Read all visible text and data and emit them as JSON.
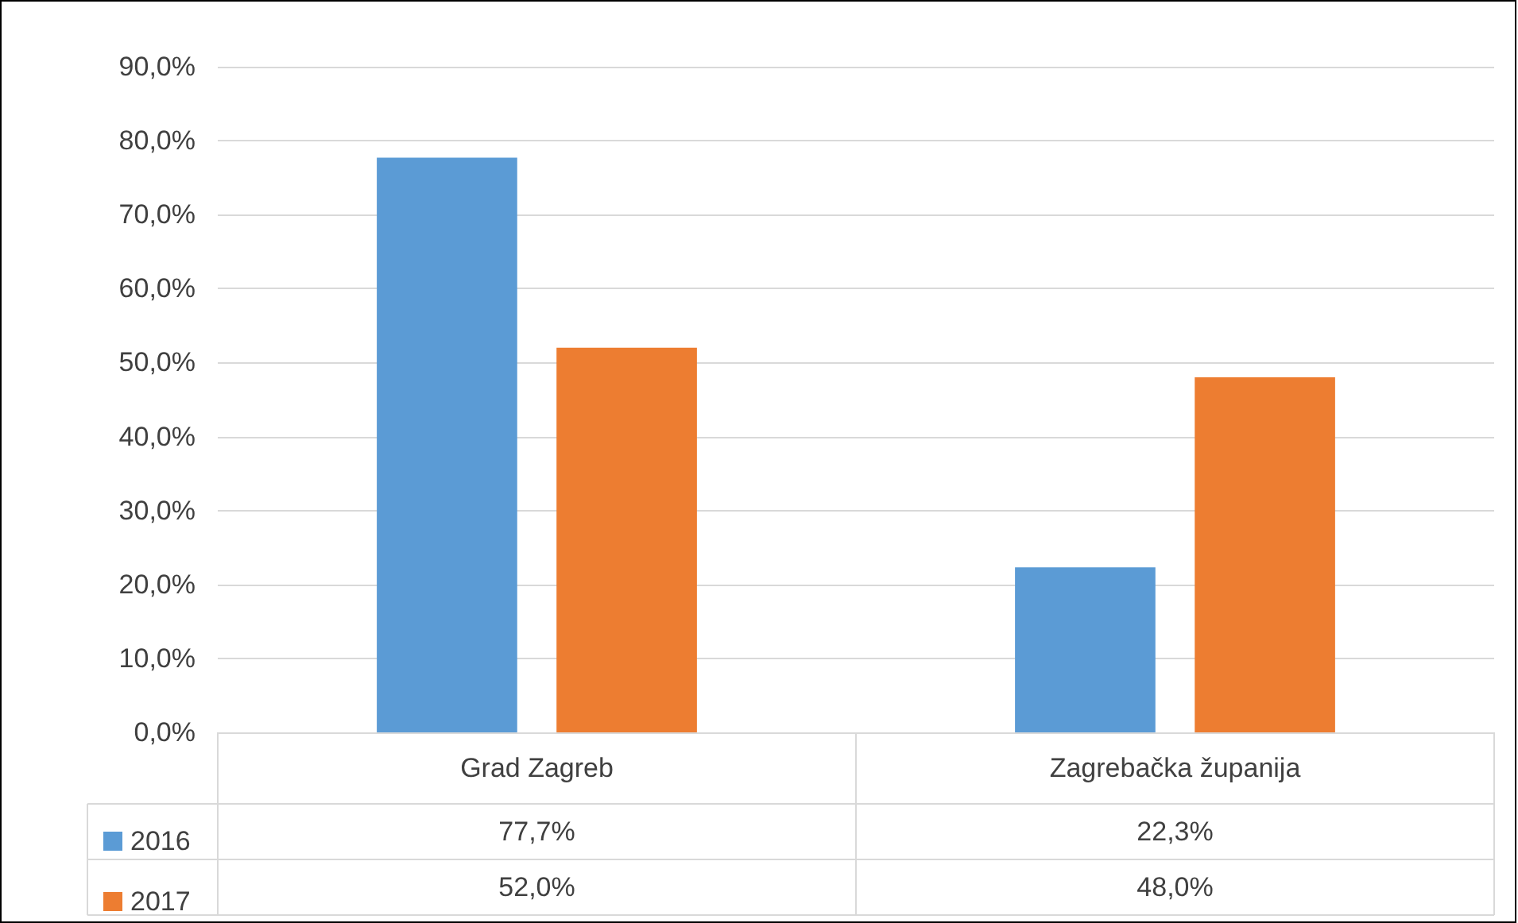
{
  "chart_data": {
    "type": "bar",
    "categories": [
      "Grad Zagreb",
      "Zagrebačka županija"
    ],
    "series": [
      {
        "name": "2016",
        "color": "#5b9bd5",
        "values": [
          77.7,
          22.3
        ],
        "value_labels": [
          "77,7%",
          "22,3%"
        ]
      },
      {
        "name": "2017",
        "color": "#ed7d31",
        "values": [
          52.0,
          48.0
        ],
        "value_labels": [
          "52,0%",
          "48,0%"
        ]
      }
    ],
    "ylim": [
      0,
      90
    ],
    "yticks": [
      {
        "value": 0,
        "label": "0,0%"
      },
      {
        "value": 10,
        "label": "10,0%"
      },
      {
        "value": 20,
        "label": "20,0%"
      },
      {
        "value": 30,
        "label": "30,0%"
      },
      {
        "value": 40,
        "label": "40,0%"
      },
      {
        "value": 50,
        "label": "50,0%"
      },
      {
        "value": 60,
        "label": "60,0%"
      },
      {
        "value": 70,
        "label": "70,0%"
      },
      {
        "value": 80,
        "label": "80,0%"
      },
      {
        "value": 90,
        "label": "90,0%"
      }
    ],
    "grid": "y",
    "legend": "bottom left"
  }
}
